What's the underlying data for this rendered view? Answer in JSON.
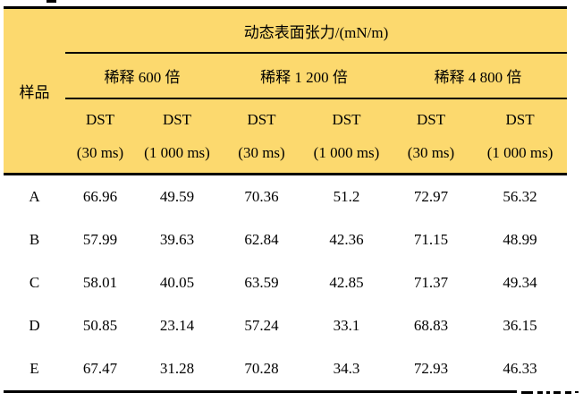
{
  "table": {
    "colors": {
      "header_bg": "#FCD96E",
      "border": "#000000",
      "text": "#000000",
      "body_bg": "#FFFFFF"
    },
    "sample_col_header": "样品",
    "unit_header": "动态表面张力/(mN/m)",
    "dilution_headers": [
      "稀释 600 倍",
      "稀释 1 200 倍",
      "稀释 4 800 倍"
    ],
    "dst_col_headers": [
      {
        "line1": "DST",
        "line2": "(30 ms)"
      },
      {
        "line1": "DST",
        "line2": "(1 000 ms)"
      },
      {
        "line1": "DST",
        "line2": "(30 ms)"
      },
      {
        "line1": "DST",
        "line2": "(1 000 ms)"
      },
      {
        "line1": "DST",
        "line2": "(30 ms)"
      },
      {
        "line1": "DST",
        "line2": "(1 000 ms)"
      }
    ],
    "rows": [
      {
        "sample": "A",
        "values": [
          "66.96",
          "49.59",
          "70.36",
          "51.2",
          "72.97",
          "56.32"
        ]
      },
      {
        "sample": "B",
        "values": [
          "57.99",
          "39.63",
          "62.84",
          "42.36",
          "71.15",
          "48.99"
        ]
      },
      {
        "sample": "C",
        "values": [
          "58.01",
          "40.05",
          "63.59",
          "42.85",
          "71.37",
          "49.34"
        ]
      },
      {
        "sample": "D",
        "values": [
          "50.85",
          "23.14",
          "57.24",
          "33.1",
          "68.83",
          "36.15"
        ]
      },
      {
        "sample": "E",
        "values": [
          "67.47",
          "31.28",
          "70.28",
          "34.3",
          "72.93",
          "46.33"
        ]
      }
    ]
  }
}
